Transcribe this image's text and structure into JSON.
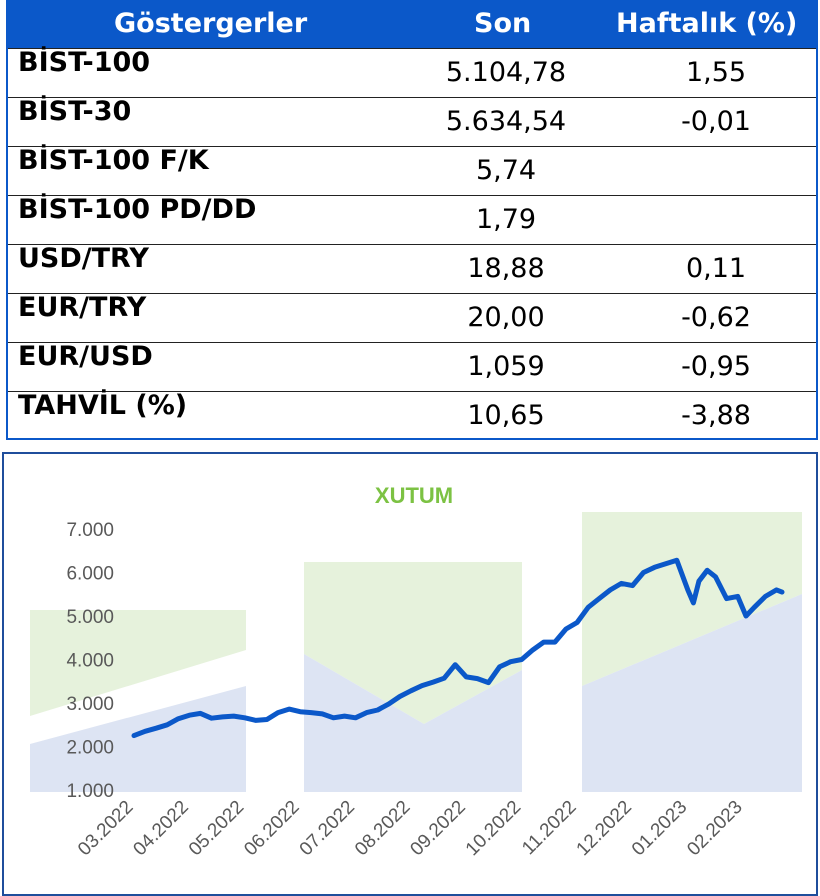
{
  "table": {
    "headers": {
      "name": "Göstergerler",
      "son": "Son",
      "haftalik": "Haftalık (%)"
    },
    "rows": [
      {
        "name": "BİST-100",
        "son": "5.104,78",
        "haftalik": "1,55"
      },
      {
        "name": "BİST-30",
        "son": "5.634,54",
        "haftalik": "-0,01"
      },
      {
        "name": "BİST-100 F/K",
        "son": "5,74",
        "haftalik": ""
      },
      {
        "name": "BİST-100 PD/DD",
        "son": "1,79",
        "haftalik": ""
      },
      {
        "name": "USD/TRY",
        "son": "18,88",
        "haftalik": "0,11"
      },
      {
        "name": "EUR/TRY",
        "son": "20,00",
        "haftalik": "-0,62"
      },
      {
        "name": "EUR/USD",
        "son": "1,059",
        "haftalik": "-0,95"
      },
      {
        "name": "TAHVİL (%)",
        "son": "10,65",
        "haftalik": "-3,88"
      }
    ]
  },
  "colors": {
    "header_bg": "#0b58c9",
    "line": "#0b58c9",
    "title": "#7cc243",
    "watermark_green": "#e6f2dc",
    "watermark_blue": "#dde4f3"
  },
  "chart_data": {
    "type": "line",
    "title": "XUTUM",
    "ylim": [
      1000,
      7000
    ],
    "yticks": [
      "1.000",
      "2.000",
      "3.000",
      "4.000",
      "5.000",
      "6.000",
      "7.000"
    ],
    "ytick_values": [
      1000,
      2000,
      3000,
      4000,
      5000,
      6000,
      7000
    ],
    "xticks": [
      "03.2022",
      "04.2022",
      "05.2022",
      "06.2022",
      "07.2022",
      "08.2022",
      "09.2022",
      "10.2022",
      "11.2022",
      "12.2022",
      "01.2023",
      "02.2023"
    ],
    "x_month_index_range": [
      0,
      11.7
    ],
    "grid": false,
    "series": [
      {
        "x": [
          0,
          0.2,
          0.4,
          0.6,
          0.8,
          1.0,
          1.2,
          1.4,
          1.6,
          1.8,
          2.0,
          2.2,
          2.4,
          2.6,
          2.8,
          3.0,
          3.2,
          3.4,
          3.6,
          3.8,
          4.0,
          4.2,
          4.4,
          4.6,
          4.8,
          5.0,
          5.2,
          5.4,
          5.6,
          5.8,
          6.0,
          6.2,
          6.4,
          6.6,
          6.8,
          7.0,
          7.2,
          7.4,
          7.6,
          7.8,
          8.0,
          8.2,
          8.4,
          8.6,
          8.8,
          9.0,
          9.2,
          9.4,
          9.6,
          9.8,
          10.0,
          10.1,
          10.2,
          10.35,
          10.5,
          10.7,
          10.9,
          11.05,
          11.2,
          11.4,
          11.6,
          11.7
        ],
        "y": [
          2250,
          2350,
          2420,
          2500,
          2640,
          2720,
          2760,
          2650,
          2680,
          2700,
          2660,
          2600,
          2620,
          2780,
          2860,
          2800,
          2780,
          2750,
          2660,
          2700,
          2660,
          2780,
          2840,
          2980,
          3150,
          3280,
          3400,
          3480,
          3570,
          3880,
          3600,
          3560,
          3470,
          3830,
          3950,
          4000,
          4220,
          4400,
          4400,
          4700,
          4850,
          5200,
          5400,
          5600,
          5750,
          5700,
          6000,
          6120,
          6200,
          6280,
          5600,
          5300,
          5800,
          6050,
          5900,
          5400,
          5450,
          5000,
          5200,
          5450,
          5600,
          5550
        ]
      }
    ]
  }
}
